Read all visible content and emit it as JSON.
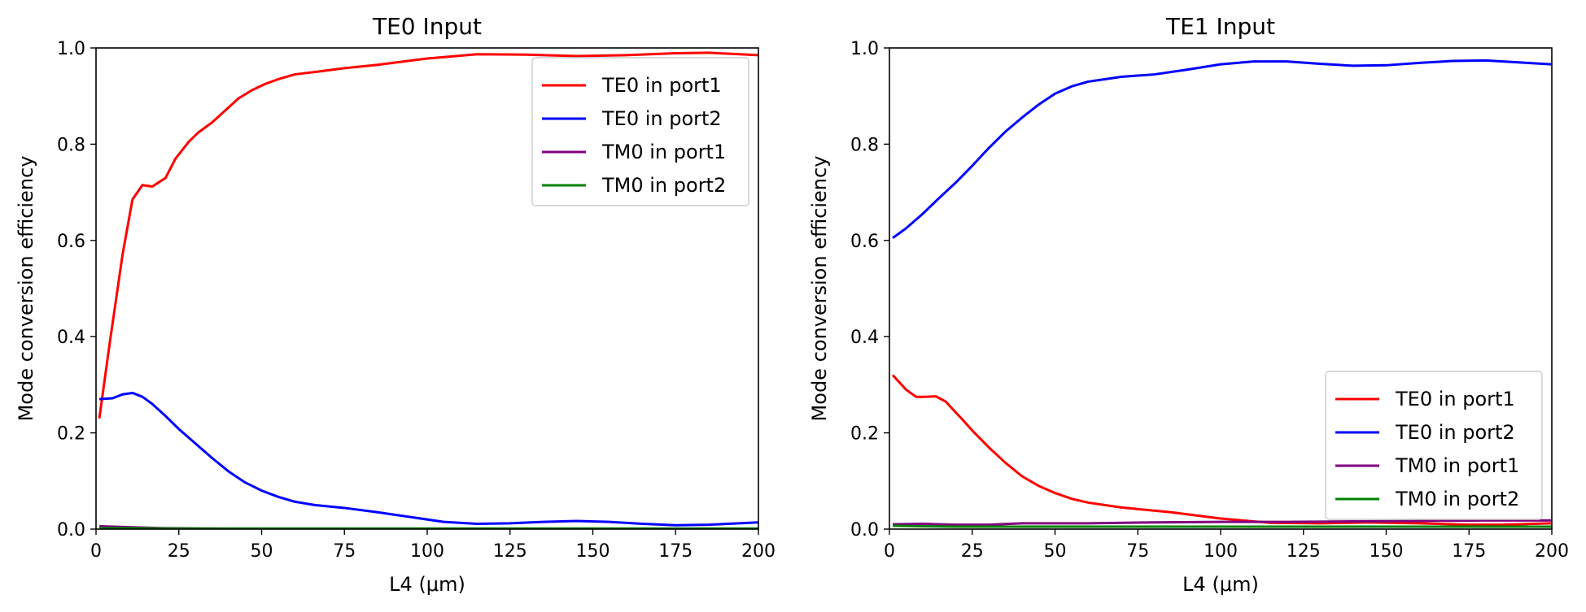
{
  "chart_data": [
    {
      "type": "line",
      "title": "TE0 Input",
      "xlabel": "L4 (μm)",
      "ylabel": "Mode conversion efficiency",
      "xlim": [
        0,
        200
      ],
      "ylim": [
        0,
        1
      ],
      "xticks": [
        "0",
        "25",
        "50",
        "75",
        "100",
        "125",
        "150",
        "175",
        "200"
      ],
      "yticks": [
        "0.0",
        "0.2",
        "0.4",
        "0.6",
        "0.8",
        "1.0"
      ],
      "grid": false,
      "legend_position": "top-right",
      "series": [
        {
          "name": "TE0 in port1",
          "color": "#ff0000",
          "x": [
            1,
            4,
            8,
            11,
            14,
            17,
            21,
            24,
            28,
            31,
            35,
            39,
            43,
            47,
            51,
            55,
            60,
            66,
            75,
            85,
            100,
            115,
            130,
            145,
            160,
            175,
            185,
            200
          ],
          "y": [
            0.23,
            0.38,
            0.57,
            0.685,
            0.715,
            0.712,
            0.73,
            0.77,
            0.805,
            0.825,
            0.845,
            0.87,
            0.895,
            0.912,
            0.925,
            0.935,
            0.945,
            0.95,
            0.958,
            0.965,
            0.978,
            0.987,
            0.986,
            0.983,
            0.985,
            0.989,
            0.99,
            0.985
          ]
        },
        {
          "name": "TE0 in port2",
          "color": "#0000ff",
          "x": [
            1,
            5,
            8,
            11,
            14,
            17,
            21,
            25,
            30,
            35,
            40,
            45,
            50,
            55,
            60,
            66,
            75,
            85,
            95,
            105,
            115,
            125,
            135,
            145,
            155,
            165,
            175,
            185,
            200
          ],
          "y": [
            0.27,
            0.272,
            0.28,
            0.283,
            0.275,
            0.26,
            0.235,
            0.208,
            0.178,
            0.148,
            0.12,
            0.097,
            0.08,
            0.067,
            0.057,
            0.05,
            0.044,
            0.035,
            0.025,
            0.015,
            0.011,
            0.012,
            0.015,
            0.017,
            0.015,
            0.011,
            0.008,
            0.009,
            0.014
          ]
        },
        {
          "name": "TM0 in port1",
          "color": "#800080",
          "x": [
            1,
            10,
            20,
            40,
            80,
            120,
            160,
            200
          ],
          "y": [
            0.006,
            0.004,
            0.002,
            0.001,
            0.001,
            0.001,
            0.001,
            0.001
          ]
        },
        {
          "name": "TM0 in port2",
          "color": "#008000",
          "x": [
            1,
            10,
            20,
            40,
            80,
            120,
            160,
            200
          ],
          "y": [
            0.002,
            0.002,
            0.001,
            0.001,
            0.001,
            0.001,
            0.001,
            0.001
          ]
        }
      ]
    },
    {
      "type": "line",
      "title": "TE1 Input",
      "xlabel": "L4 (μm)",
      "ylabel": "Mode conversion efficiency",
      "xlim": [
        0,
        200
      ],
      "ylim": [
        0,
        1
      ],
      "xticks": [
        "0",
        "25",
        "50",
        "75",
        "100",
        "125",
        "150",
        "175",
        "200"
      ],
      "yticks": [
        "0.0",
        "0.2",
        "0.4",
        "0.6",
        "0.8",
        "1.0"
      ],
      "grid": false,
      "legend_position": "bottom-right",
      "series": [
        {
          "name": "TE0 in port1",
          "color": "#ff0000",
          "x": [
            1,
            5,
            8,
            11,
            14,
            17,
            19,
            22,
            25,
            30,
            35,
            40,
            45,
            50,
            55,
            60,
            70,
            85,
            100,
            115,
            130,
            145,
            160,
            175,
            185,
            200
          ],
          "y": [
            0.32,
            0.29,
            0.275,
            0.275,
            0.276,
            0.265,
            0.25,
            0.228,
            0.205,
            0.17,
            0.138,
            0.11,
            0.09,
            0.075,
            0.063,
            0.055,
            0.045,
            0.035,
            0.022,
            0.013,
            0.012,
            0.014,
            0.012,
            0.009,
            0.009,
            0.012
          ]
        },
        {
          "name": "TE0 in port2",
          "color": "#0000ff",
          "x": [
            1,
            5,
            10,
            15,
            20,
            25,
            30,
            35,
            40,
            45,
            50,
            55,
            60,
            65,
            70,
            80,
            90,
            100,
            110,
            120,
            130,
            140,
            150,
            160,
            170,
            180,
            190,
            200
          ],
          "y": [
            0.605,
            0.625,
            0.655,
            0.688,
            0.72,
            0.755,
            0.792,
            0.826,
            0.855,
            0.882,
            0.905,
            0.92,
            0.93,
            0.935,
            0.94,
            0.945,
            0.955,
            0.966,
            0.972,
            0.972,
            0.967,
            0.963,
            0.964,
            0.969,
            0.973,
            0.974,
            0.97,
            0.966
          ]
        },
        {
          "name": "TM0 in port1",
          "color": "#800080",
          "x": [
            1,
            10,
            20,
            30,
            40,
            60,
            80,
            100,
            120,
            140,
            160,
            180,
            200
          ],
          "y": [
            0.01,
            0.011,
            0.009,
            0.009,
            0.012,
            0.012,
            0.014,
            0.015,
            0.015,
            0.016,
            0.017,
            0.018,
            0.018
          ]
        },
        {
          "name": "TM0 in port2",
          "color": "#008000",
          "x": [
            1,
            10,
            20,
            40,
            60,
            80,
            100,
            120,
            140,
            160,
            180,
            200
          ],
          "y": [
            0.007,
            0.006,
            0.005,
            0.005,
            0.005,
            0.005,
            0.005,
            0.005,
            0.005,
            0.005,
            0.005,
            0.005
          ]
        }
      ]
    }
  ]
}
